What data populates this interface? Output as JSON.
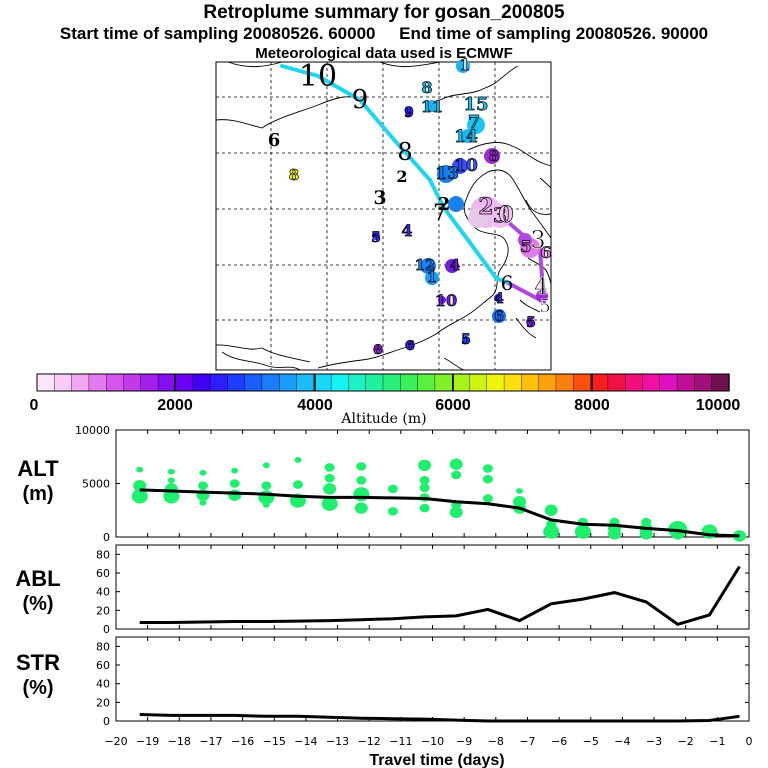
{
  "header": {
    "title": "Retroplume summary for gosan_200805",
    "start_label": "Start time of sampling 20080526. 60000",
    "end_label": "End time of sampling 20080526. 90000",
    "met_label": "Meteorological data used is ECMWF"
  },
  "colorbar": {
    "ticks": [
      "0",
      "2000",
      "4000",
      "6000",
      "8000",
      "10000"
    ],
    "label": "Altitude (m)",
    "colors": [
      "#fde6fd",
      "#f8ccf8",
      "#f0a8f3",
      "#e37aee",
      "#d454ee",
      "#c23ae8",
      "#a21ff0",
      "#8410f2",
      "#6d00f2",
      "#4000f5",
      "#2d1cfb",
      "#1e3cfc",
      "#1b5dfc",
      "#1c7dfb",
      "#1c9dfa",
      "#1dbcf6",
      "#18d8f6",
      "#17f2f2",
      "#1ef0c8",
      "#21f0a0",
      "#29f07c",
      "#3bf05a",
      "#5cf03d",
      "#80f028",
      "#a8f21a",
      "#ccf410",
      "#f0f40a",
      "#fce00c",
      "#fcc00c",
      "#fca00e",
      "#fc800e",
      "#fc5010",
      "#f61e1e",
      "#f01048",
      "#f0107c",
      "#f010a4",
      "#e010c0",
      "#c01098",
      "#a01078",
      "#70104c"
    ]
  },
  "map": {
    "trajectory_cyan_labels": [
      "10",
      "9",
      "8",
      "7",
      "6"
    ],
    "trajectory_magenta_labels": [
      "3",
      "4",
      "5"
    ],
    "cluster_labels": [
      {
        "t": "1",
        "fill": "#e8e0e8"
      },
      {
        "t": "6",
        "fill": "#ffffff"
      },
      {
        "t": "8",
        "fill": "#f0f40a"
      },
      {
        "t": "3",
        "fill": "#ffffff"
      },
      {
        "t": "2",
        "fill": "#ffffff"
      },
      {
        "t": "5",
        "fill": "#3a2aee"
      },
      {
        "t": "4",
        "fill": "#3a2aee"
      },
      {
        "t": "9",
        "fill": "#2d1cfb"
      },
      {
        "t": "8",
        "fill": "#1ab4f0"
      },
      {
        "t": "11",
        "fill": "#1ab4f0"
      },
      {
        "t": "15",
        "fill": "#1cc4f4"
      },
      {
        "t": "7",
        "fill": "#1cc4f4"
      },
      {
        "t": "14",
        "fill": "#1cc4f4"
      },
      {
        "t": "13",
        "fill": "#1a80f0"
      },
      {
        "t": "10",
        "fill": "#3a50f6"
      },
      {
        "t": "8",
        "fill": "#9a2cd4"
      },
      {
        "t": "2",
        "fill": "#f0a8f3"
      },
      {
        "t": "3",
        "fill": "#e07ce8"
      },
      {
        "t": "0",
        "fill": "#e9c6ee"
      },
      {
        "t": "12",
        "fill": "#1c80fa"
      },
      {
        "t": "4",
        "fill": "#6d20e0"
      },
      {
        "t": "1",
        "fill": "#1c9dfa"
      },
      {
        "t": "10",
        "fill": "#6d20e0"
      },
      {
        "t": "4",
        "fill": "#3a2aee"
      },
      {
        "t": "6",
        "fill": "#1c70f6"
      },
      {
        "t": "5",
        "fill": "#6d20e0"
      },
      {
        "t": "5",
        "fill": "#1e3cfc"
      },
      {
        "t": "8",
        "fill": "#9a2cd4"
      },
      {
        "t": "6",
        "fill": "#3a2aee"
      },
      {
        "t": "5",
        "fill": "#e07ce8"
      },
      {
        "t": "6",
        "fill": "#e07ce8"
      },
      {
        "t": "2",
        "fill": "#ffffff"
      }
    ]
  },
  "chart_data": [
    {
      "type": "scatter",
      "panel": "ALT",
      "ylabel_line1": "ALT",
      "ylabel_line2": "(m)",
      "ylim": [
        0,
        10000
      ],
      "yticks": [
        "10000",
        "5000",
        "0"
      ],
      "xlim": [
        -20,
        0
      ],
      "mean_line": {
        "x": [
          -19.25,
          -18.25,
          -17.25,
          -16.25,
          -15.25,
          -14.25,
          -13.25,
          -12.25,
          -11.25,
          -10.25,
          -9.25,
          -8.25,
          -7.25,
          -6.25,
          -5.25,
          -4.25,
          -3.25,
          -2.25,
          -1.25,
          -0.3
        ],
        "y": [
          4400,
          4300,
          4200,
          4100,
          4000,
          3800,
          3700,
          3700,
          3650,
          3600,
          3300,
          3100,
          2700,
          1600,
          1200,
          1100,
          800,
          600,
          200,
          100
        ]
      },
      "points": [
        {
          "x": -19.25,
          "y": 6300,
          "s": 1
        },
        {
          "x": -19.25,
          "y": 4800,
          "s": 3
        },
        {
          "x": -19.25,
          "y": 4300,
          "s": 2
        },
        {
          "x": -19.25,
          "y": 3800,
          "s": 4
        },
        {
          "x": -18.25,
          "y": 6100,
          "s": 1
        },
        {
          "x": -18.25,
          "y": 5300,
          "s": 1
        },
        {
          "x": -18.25,
          "y": 4500,
          "s": 3
        },
        {
          "x": -18.25,
          "y": 3800,
          "s": 4
        },
        {
          "x": -17.25,
          "y": 6000,
          "s": 1
        },
        {
          "x": -17.25,
          "y": 4800,
          "s": 2
        },
        {
          "x": -17.25,
          "y": 3900,
          "s": 3
        },
        {
          "x": -17.25,
          "y": 3200,
          "s": 1
        },
        {
          "x": -16.25,
          "y": 6200,
          "s": 1
        },
        {
          "x": -16.25,
          "y": 5000,
          "s": 2
        },
        {
          "x": -16.25,
          "y": 3900,
          "s": 3
        },
        {
          "x": -15.25,
          "y": 6700,
          "s": 1
        },
        {
          "x": -15.25,
          "y": 4800,
          "s": 2
        },
        {
          "x": -15.25,
          "y": 3700,
          "s": 4
        },
        {
          "x": -15.25,
          "y": 3000,
          "s": 1
        },
        {
          "x": -14.25,
          "y": 7200,
          "s": 1
        },
        {
          "x": -14.25,
          "y": 4900,
          "s": 2
        },
        {
          "x": -14.25,
          "y": 3400,
          "s": 4
        },
        {
          "x": -13.25,
          "y": 6500,
          "s": 2
        },
        {
          "x": -13.25,
          "y": 5500,
          "s": 2
        },
        {
          "x": -13.25,
          "y": 4500,
          "s": 3
        },
        {
          "x": -13.25,
          "y": 3100,
          "s": 4
        },
        {
          "x": -12.25,
          "y": 6600,
          "s": 2
        },
        {
          "x": -12.25,
          "y": 5300,
          "s": 2
        },
        {
          "x": -12.25,
          "y": 4000,
          "s": 4
        },
        {
          "x": -12.25,
          "y": 2700,
          "s": 3
        },
        {
          "x": -11.25,
          "y": 4500,
          "s": 2
        },
        {
          "x": -11.25,
          "y": 2400,
          "s": 2
        },
        {
          "x": -10.25,
          "y": 6700,
          "s": 3
        },
        {
          "x": -10.25,
          "y": 5300,
          "s": 2
        },
        {
          "x": -10.25,
          "y": 4600,
          "s": 2
        },
        {
          "x": -10.25,
          "y": 3700,
          "s": 2
        },
        {
          "x": -10.25,
          "y": 2700,
          "s": 2
        },
        {
          "x": -9.25,
          "y": 6800,
          "s": 3
        },
        {
          "x": -9.25,
          "y": 5800,
          "s": 2
        },
        {
          "x": -9.25,
          "y": 3000,
          "s": 2
        },
        {
          "x": -9.25,
          "y": 2300,
          "s": 3
        },
        {
          "x": -8.25,
          "y": 6400,
          "s": 2
        },
        {
          "x": -8.25,
          "y": 5400,
          "s": 2
        },
        {
          "x": -8.25,
          "y": 3600,
          "s": 2
        },
        {
          "x": -7.25,
          "y": 4300,
          "s": 1
        },
        {
          "x": -7.25,
          "y": 3300,
          "s": 3
        },
        {
          "x": -7.25,
          "y": 2700,
          "s": 3
        },
        {
          "x": -6.25,
          "y": 2500,
          "s": 3
        },
        {
          "x": -6.25,
          "y": 1200,
          "s": 2
        },
        {
          "x": -6.25,
          "y": 500,
          "s": 4
        },
        {
          "x": -5.25,
          "y": 1400,
          "s": 2
        },
        {
          "x": -5.25,
          "y": 500,
          "s": 4
        },
        {
          "x": -4.25,
          "y": 1400,
          "s": 2
        },
        {
          "x": -4.25,
          "y": 800,
          "s": 3
        },
        {
          "x": -4.25,
          "y": 300,
          "s": 3
        },
        {
          "x": -3.25,
          "y": 1400,
          "s": 2
        },
        {
          "x": -3.25,
          "y": 800,
          "s": 3
        },
        {
          "x": -3.25,
          "y": 300,
          "s": 3
        },
        {
          "x": -2.25,
          "y": 700,
          "s": 5
        },
        {
          "x": -2.25,
          "y": 300,
          "s": 3
        },
        {
          "x": -1.25,
          "y": 500,
          "s": 4
        },
        {
          "x": -0.3,
          "y": 100,
          "s": 3
        }
      ]
    },
    {
      "type": "line",
      "panel": "ABL",
      "ylabel_line1": "ABL",
      "ylabel_line2": "(%)",
      "ylim": [
        0,
        90
      ],
      "yticks": [
        "80",
        "60",
        "40",
        "20",
        "0"
      ],
      "xlim": [
        -20,
        0
      ],
      "x": [
        -19.25,
        -18.25,
        -17.25,
        -16.25,
        -15.25,
        -14.25,
        -13.25,
        -12.25,
        -11.25,
        -10.25,
        -9.25,
        -8.25,
        -7.25,
        -6.25,
        -5.25,
        -4.25,
        -3.25,
        -2.25,
        -1.25,
        -0.3
      ],
      "y": [
        7,
        7,
        7.5,
        8,
        8,
        8.5,
        9,
        10,
        11,
        13,
        14,
        21,
        9,
        27,
        32,
        39,
        29,
        5,
        15,
        67
      ]
    },
    {
      "type": "line",
      "panel": "STR",
      "ylabel_line1": "STR",
      "ylabel_line2": "(%)",
      "ylim": [
        0,
        90
      ],
      "yticks": [
        "80",
        "60",
        "40",
        "20",
        "0"
      ],
      "xlim": [
        -20,
        0
      ],
      "xticks": [
        "-20",
        "-19",
        "-18",
        "-17",
        "-16",
        "-15",
        "-14",
        "-13",
        "-12",
        "-11",
        "-10",
        "-9",
        "-8",
        "-7",
        "-6",
        "-5",
        "-4",
        "-3",
        "-2",
        "-1",
        "0"
      ],
      "xlabel": "Travel time (days)",
      "x": [
        -19.25,
        -18.25,
        -17.25,
        -16.25,
        -15.25,
        -14.25,
        -13.25,
        -12.25,
        -11.25,
        -10.25,
        -9.25,
        -8.25,
        -7.25,
        -6.25,
        -5.25,
        -4.25,
        -3.25,
        -2.25,
        -1.25,
        -0.3
      ],
      "y": [
        7,
        6,
        6,
        6,
        5,
        5,
        4,
        3,
        2.5,
        2,
        1,
        0,
        0,
        0,
        0,
        0,
        0,
        0,
        0.5,
        5
      ]
    }
  ]
}
